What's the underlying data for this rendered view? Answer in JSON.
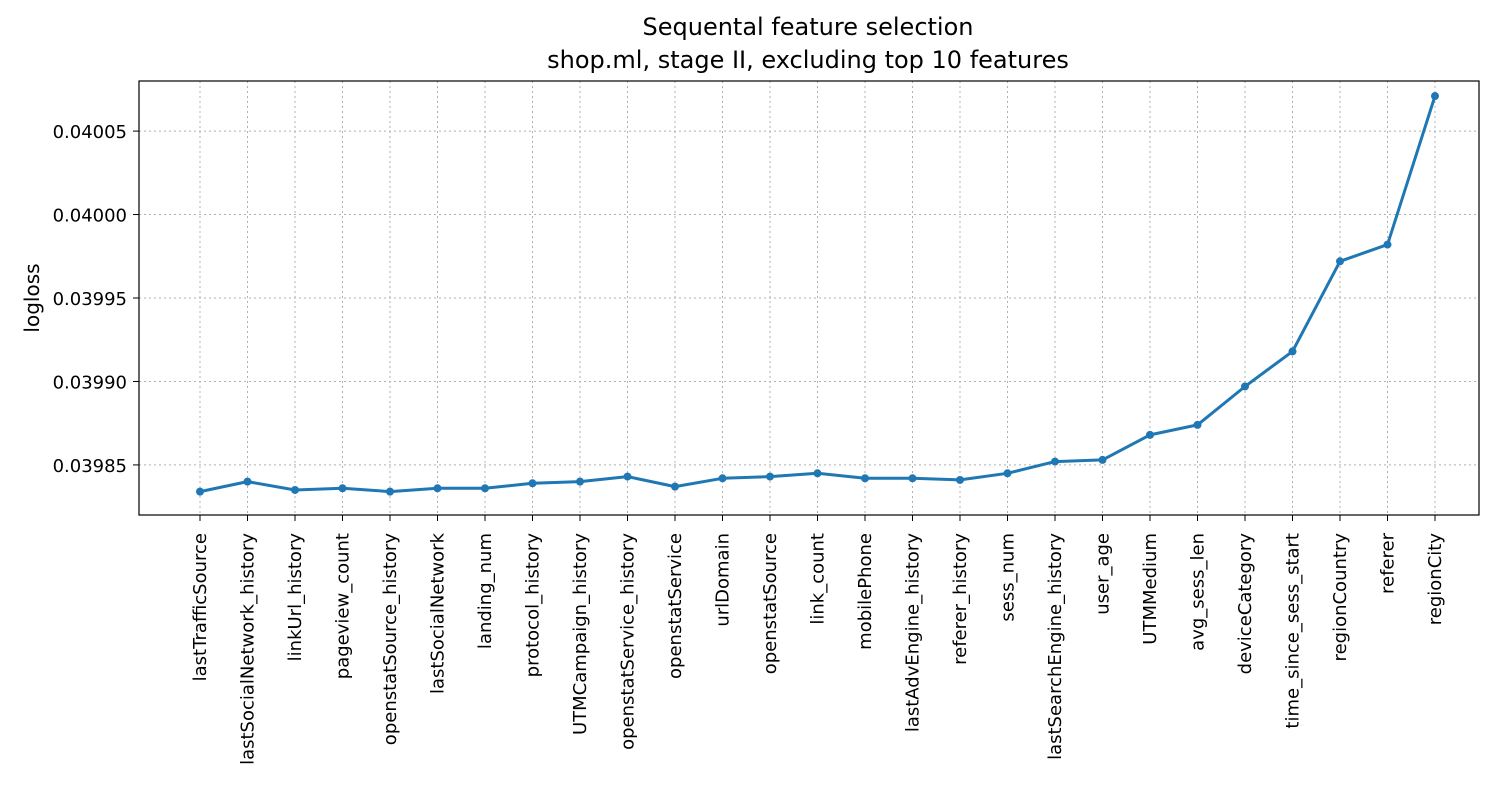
{
  "chart_data": {
    "type": "line",
    "title": "Sequental feature selection",
    "subtitle": "shop.ml, stage II, excluding top 10 features",
    "xlabel": "",
    "ylabel": "logloss",
    "ylim": [
      0.03982,
      0.04008
    ],
    "yticks": [
      0.03985,
      0.0399,
      0.03995,
      0.04,
      0.04005
    ],
    "ytick_labels": [
      "0.03985",
      "0.03990",
      "0.03995",
      "0.04000",
      "0.04005"
    ],
    "grid": true,
    "color": "#1f77b4",
    "categories": [
      "lastTrafficSource",
      "lastSocialNetwork_history",
      "linkUrl_history",
      "pageview_count",
      "openstatSource_history",
      "lastSocialNetwork",
      "landing_num",
      "protocol_history",
      "UTMCampaign_history",
      "openstatService_history",
      "openstatService",
      "urlDomain",
      "openstatSource",
      "link_count",
      "mobilePhone",
      "lastAdvEngine_history",
      "referer_history",
      "sess_num",
      "lastSearchEngine_history",
      "user_age",
      "UTMMedium",
      "avg_sess_len",
      "deviceCategory",
      "time_since_sess_start",
      "regionCountry",
      "referer",
      "regionCity"
    ],
    "values": [
      0.039834,
      0.03984,
      0.039835,
      0.039836,
      0.039834,
      0.039836,
      0.039836,
      0.039839,
      0.03984,
      0.039843,
      0.039837,
      0.039842,
      0.039843,
      0.039845,
      0.039842,
      0.039842,
      0.039841,
      0.039845,
      0.039852,
      0.039853,
      0.039868,
      0.039874,
      0.039897,
      0.039918,
      0.039972,
      0.039982,
      0.040071
    ]
  }
}
